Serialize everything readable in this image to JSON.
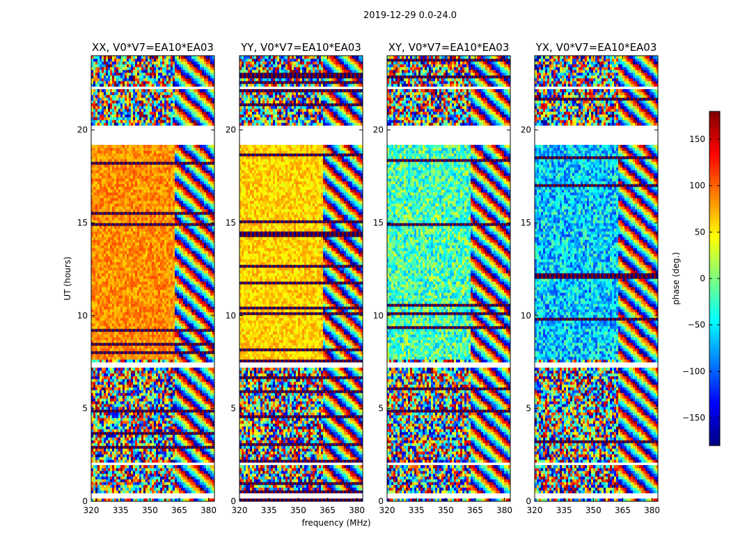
{
  "figure_title": "2019-12-29 0.0-24.0",
  "colorbar": {
    "label": "phase (deg.)",
    "range": [
      -180,
      180
    ],
    "ticks": [
      -150,
      -100,
      -50,
      0,
      50,
      100,
      150
    ],
    "tick_labels": [
      "−150",
      "−100",
      "−50",
      "0",
      "50",
      "100",
      "150"
    ],
    "colors": [
      "#00007f",
      "#0000ff",
      "#007fff",
      "#00ffff",
      "#7fff7f",
      "#ffff00",
      "#ff7f00",
      "#ff0000",
      "#7f0000"
    ]
  },
  "chart_data": [
    {
      "type": "heatmap",
      "title": "XX, V0*V7=EA10*EA03",
      "xlabel": "",
      "ylabel": "UT (hours)",
      "xlim": [
        320,
        383
      ],
      "ylim": [
        0,
        24
      ],
      "xticks": [
        320,
        335,
        350,
        365,
        380
      ],
      "yticks": [
        0,
        5,
        10,
        15,
        20
      ],
      "value": "phase (deg.)",
      "day_phase": 85,
      "night_phase": "noisy"
    },
    {
      "type": "heatmap",
      "title": "YY, V0*V7=EA10*EA03",
      "xlabel": "frequency (MHz)",
      "ylabel": "",
      "xlim": [
        320,
        383
      ],
      "ylim": [
        0,
        24
      ],
      "xticks": [
        320,
        335,
        350,
        365,
        380
      ],
      "yticks": [
        0,
        5,
        10,
        15,
        20
      ],
      "value": "phase (deg.)",
      "day_phase": 60,
      "night_phase": "noisy"
    },
    {
      "type": "heatmap",
      "title": "XY, V0*V7=EA10*EA03",
      "xlabel": "",
      "ylabel": "",
      "xlim": [
        320,
        383
      ],
      "ylim": [
        0,
        24
      ],
      "xticks": [
        320,
        335,
        350,
        365,
        380
      ],
      "yticks": [
        0,
        5,
        10,
        15,
        20
      ],
      "value": "phase (deg.)",
      "day_phase": -20,
      "night_phase": "noisy"
    },
    {
      "type": "heatmap",
      "title": "YX, V0*V7=EA10*EA03",
      "xlabel": "",
      "ylabel": "",
      "xlim": [
        320,
        383
      ],
      "ylim": [
        0,
        24
      ],
      "xticks": [
        320,
        335,
        350,
        365,
        380
      ],
      "yticks": [
        0,
        5,
        10,
        15,
        20
      ],
      "value": "phase (deg.)",
      "day_phase": -60,
      "night_phase": "noisy"
    }
  ]
}
